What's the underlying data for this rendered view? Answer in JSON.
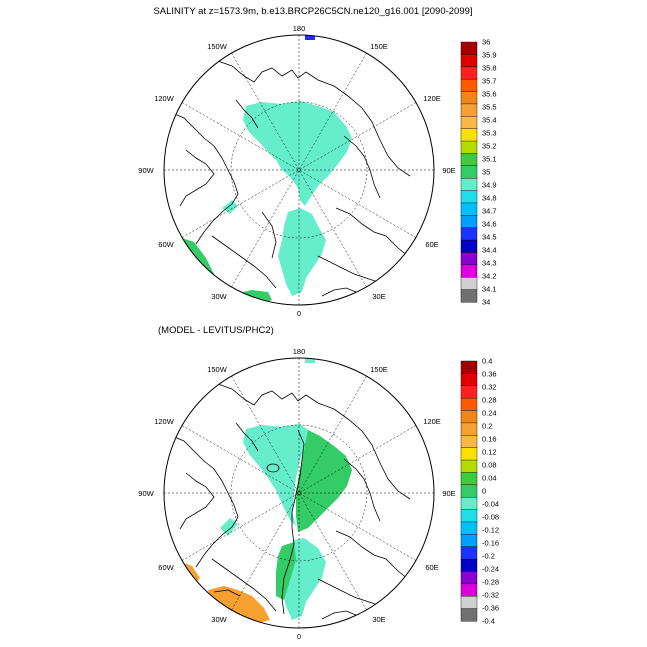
{
  "top_panel": {
    "title": "SALINITY at z=1573.9m, b.e13.BRCP26C5CN.ne120_g16.001 [2090-2099]",
    "lon_labels": [
      "180",
      "150E",
      "120E",
      "90E",
      "60E",
      "30E",
      "0",
      "30W",
      "60W",
      "90W",
      "120W",
      "150W"
    ],
    "colorbar_labels": [
      "36",
      "35.9",
      "35.8",
      "35.7",
      "35.6",
      "35.5",
      "35.4",
      "35.3",
      "35.2",
      "35.1",
      "35",
      "34.9",
      "34.8",
      "34.7",
      "34.6",
      "34.5",
      "34.4",
      "34.3",
      "34.2",
      "34.1",
      "34"
    ],
    "colorbar_colors": [
      "#a50000",
      "#e00000",
      "#ff2020",
      "#ff5a00",
      "#f0871a",
      "#f5a030",
      "#f8b848",
      "#fbe000",
      "#b4dc00",
      "#3ccc3c",
      "#33cc66",
      "#66eecc",
      "#22ddee",
      "#00c0ff",
      "#00a0ff",
      "#1e32ff",
      "#0000c8",
      "#8b00d0",
      "#dd00dd",
      "#d0d0d0",
      "#707070"
    ]
  },
  "bottom_panel": {
    "title": "(MODEL - LEVITUS/PHC2)",
    "lon_labels": [
      "180",
      "150E",
      "120E",
      "90E",
      "60E",
      "30E",
      "0",
      "30W",
      "60W",
      "90W",
      "120W",
      "150W"
    ],
    "colorbar_labels": [
      "0.4",
      "0.36",
      "0.32",
      "0.28",
      "0.24",
      "0.2",
      "0.16",
      "0.12",
      "0.08",
      "0.04",
      "0",
      "-0.04",
      "-0.08",
      "-0.12",
      "-0.16",
      "-0.2",
      "-0.24",
      "-0.28",
      "-0.32",
      "-0.36",
      "-0.4"
    ],
    "colorbar_colors": [
      "#a50000",
      "#e00000",
      "#ff2020",
      "#ff5a00",
      "#f0871a",
      "#f5a030",
      "#f8b848",
      "#fbe000",
      "#b4dc00",
      "#3ccc3c",
      "#33cc66",
      "#66eecc",
      "#22ddee",
      "#00c0ff",
      "#00a0ff",
      "#1e32ff",
      "#0000c8",
      "#8b00d0",
      "#dd00dd",
      "#d0d0d0",
      "#707070"
    ]
  },
  "colors": {
    "teal": "#66eecc",
    "green": "#33cc66",
    "light_blue": "#22ddee",
    "orange": "#f5a030",
    "navy": "#1e32ff",
    "coast": "#000000"
  }
}
